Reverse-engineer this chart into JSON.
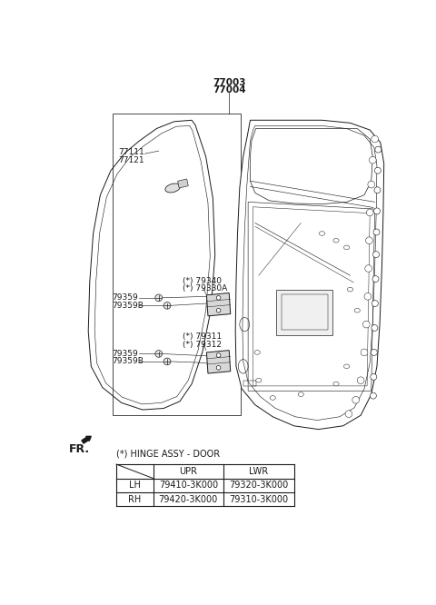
{
  "part_numbers_top": [
    "77003",
    "77004"
  ],
  "part_numbers_left": [
    "77111",
    "77121"
  ],
  "hinge_label": "(*) HINGE ASSY - DOOR",
  "table_headers": [
    "",
    "UPR",
    "LWR"
  ],
  "table_rows": [
    [
      "LH",
      "79410-3K000",
      "79320-3K000"
    ],
    [
      "RH",
      "79420-3K000",
      "79310-3K000"
    ]
  ],
  "label_79340": "(*) 79340",
  "label_79330A": "(*) 79330A",
  "label_79311": "(*) 79311",
  "label_79312": "(*) 79312",
  "label_79359_top": "79359",
  "label_79359B_top": "79359B",
  "label_79359_bot": "79359",
  "label_79359B_bot": "79359B",
  "fr_label": "FR.",
  "bg_color": "#ffffff",
  "line_color": "#1a1a1a",
  "font_size": 6.5
}
